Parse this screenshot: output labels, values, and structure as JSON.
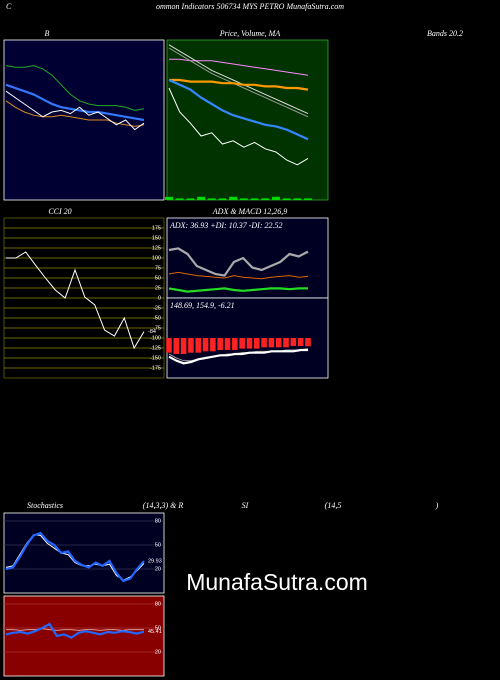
{
  "header": {
    "left": "C",
    "title": "ommon  Indicators 506734  MYS PETRO MunafaSutra.com"
  },
  "watermark": "MunafaSutra.com",
  "chart_data": [
    {
      "type": "line",
      "title": "B",
      "title_end": "Bands 20.2",
      "background": "#000033",
      "border": "#ffffff",
      "ylim": [
        0,
        100
      ],
      "series": [
        {
          "color": "#22aa22",
          "values": [
            84,
            83,
            83,
            84,
            82,
            78,
            72,
            66,
            62,
            60,
            59,
            59,
            59,
            58,
            56,
            57
          ]
        },
        {
          "color": "#3377ff",
          "thick": true,
          "values": [
            72,
            70,
            68,
            66,
            63,
            60,
            58,
            57,
            56,
            55,
            55,
            54,
            53,
            52,
            51,
            50
          ]
        },
        {
          "color": "#dd8822",
          "values": [
            62,
            58,
            55,
            53,
            52,
            52,
            53,
            52,
            51,
            50,
            50,
            50,
            48,
            47,
            46,
            47
          ]
        },
        {
          "color": "#ffffff",
          "values": [
            68,
            64,
            60,
            56,
            52,
            55,
            56,
            54,
            58,
            53,
            55,
            51,
            47,
            50,
            44,
            48
          ]
        }
      ]
    },
    {
      "type": "line",
      "title": "Price,  Volume,  MA",
      "background": "#003300",
      "border": "#33aa33",
      "ylim": [
        0,
        100
      ],
      "series": [
        {
          "color": "#ff88ff",
          "values": [
            88,
            88,
            87,
            87,
            87,
            86,
            85,
            84,
            83,
            82,
            81,
            80,
            79,
            78
          ]
        },
        {
          "color": "#dddddd",
          "values": [
            97,
            93,
            89,
            85,
            81,
            78,
            75,
            72,
            69,
            66,
            63,
            60,
            57,
            54
          ]
        },
        {
          "color": "#999999",
          "values": [
            95,
            91,
            87,
            83,
            79,
            76,
            73,
            70,
            67,
            64,
            61,
            58,
            55,
            52
          ]
        },
        {
          "color": "#ff9900",
          "thick": true,
          "values": [
            75,
            75,
            74,
            74,
            74,
            73,
            73,
            72,
            72,
            71,
            71,
            70,
            70,
            69
          ]
        },
        {
          "color": "#3388ff",
          "thick": true,
          "values": [
            75,
            72,
            69,
            64,
            60,
            56,
            53,
            51,
            49,
            47,
            46,
            44,
            41,
            38
          ]
        },
        {
          "color": "#ffffff",
          "values": [
            70,
            55,
            48,
            40,
            42,
            35,
            37,
            33,
            36,
            32,
            30,
            25,
            22,
            26
          ]
        },
        {
          "kind": "bar",
          "color": "#00dd00",
          "values": [
            2,
            1,
            1,
            2,
            1,
            1,
            2,
            1,
            1,
            1,
            2,
            1,
            1,
            1
          ]
        }
      ]
    },
    {
      "type": "line",
      "title": "CCI 20",
      "background": "#000000",
      "border": "#666600",
      "grid_color": "#8a8a00",
      "ylim": [
        -200,
        200
      ],
      "yticks": [
        175,
        150,
        125,
        100,
        75,
        50,
        25,
        0,
        -25,
        -50,
        -75,
        -100,
        -125,
        -150,
        -175
      ],
      "end_label": true,
      "series": [
        {
          "color": "#ffffff",
          "values": [
            100,
            100,
            115,
            82,
            50,
            20,
            0,
            70,
            2,
            -17,
            -80,
            -95,
            -50,
            -125,
            -84
          ]
        }
      ]
    },
    {
      "type": "line",
      "title": "ADX  & MACD 12,26,9",
      "text": "ADX: 36.93  +DI: 10.37 -DI: 22.52",
      "background": "#000022",
      "border": "#ffffff",
      "ylim": [
        0,
        100
      ],
      "series": [
        {
          "color": "#aaaaaa",
          "thick": true,
          "values": [
            60,
            62,
            55,
            40,
            35,
            30,
            28,
            45,
            50,
            38,
            35,
            40,
            45,
            55,
            52,
            58
          ]
        },
        {
          "color": "#dd6600",
          "values": [
            30,
            32,
            30,
            28,
            27,
            26,
            25,
            28,
            26,
            25,
            24,
            26,
            27,
            28,
            26,
            27
          ]
        },
        {
          "color": "#22dd22",
          "thick": true,
          "values": [
            12,
            10,
            8,
            9,
            10,
            11,
            12,
            10,
            9,
            10,
            11,
            12,
            12,
            11,
            12,
            12
          ]
        }
      ]
    },
    {
      "type": "line",
      "text": "148.69,  154.9,  -6.21",
      "background": "#000022",
      "border": "#ffffff",
      "ylim": [
        -30,
        30
      ],
      "series": [
        {
          "kind": "bar",
          "color": "#ff2222",
          "values": [
            -11,
            -12,
            -12,
            -11,
            -11,
            -10,
            -10,
            -9,
            -9,
            -9,
            -8,
            -8,
            -8,
            -7,
            -7,
            -7,
            -7,
            -6,
            -6,
            -6.21
          ]
        },
        {
          "color": "#999999",
          "values": [
            -12,
            -15,
            -17,
            -17,
            -16,
            -15,
            -14,
            -13,
            -12,
            -12,
            -11,
            -11,
            -10,
            -10,
            -10,
            -10,
            -9,
            -9,
            -9,
            -8
          ]
        },
        {
          "color": "#ffffff",
          "thick": true,
          "values": [
            -14,
            -17,
            -19,
            -18,
            -16,
            -15,
            -14,
            -13,
            -13,
            -12,
            -12,
            -11,
            -11,
            -11,
            -10,
            -10,
            -10,
            -10,
            -9,
            -9
          ]
        }
      ]
    },
    {
      "type": "line",
      "title": "Stochastics",
      "title_parts": [
        "(14,3,3) & R",
        "SI",
        "(14,5",
        ")"
      ],
      "background": "#000022",
      "border": "#ffffff",
      "grid_color": "#333355",
      "ylim": [
        -10,
        90
      ],
      "yticks": [
        80,
        50,
        20
      ],
      "end_label": true,
      "series": [
        {
          "color": "#ffffff",
          "values": [
            22,
            24,
            38,
            52,
            63,
            62,
            52,
            46,
            40,
            38,
            28,
            24,
            24,
            26,
            24,
            26,
            12,
            6,
            10,
            18,
            27
          ]
        },
        {
          "color": "#2266ff",
          "thick": true,
          "values": [
            20,
            22,
            35,
            50,
            62,
            65,
            55,
            50,
            40,
            42,
            30,
            25,
            22,
            28,
            24,
            30,
            15,
            5,
            8,
            20,
            29.93
          ]
        }
      ]
    },
    {
      "type": "line",
      "background": "#880000",
      "border": "#ffffff",
      "grid_color": "#aa3333",
      "ylim": [
        -10,
        90
      ],
      "yticks": [
        80,
        50,
        20
      ],
      "end_label": true,
      "series": [
        {
          "color": "#dd9999",
          "values": [
            48,
            48,
            47,
            48,
            48,
            49,
            48,
            47,
            48,
            48,
            47,
            48,
            48,
            47,
            48,
            48,
            47,
            48,
            48,
            48
          ]
        },
        {
          "color": "#2266ff",
          "thick": true,
          "values": [
            42,
            44,
            45,
            43,
            46,
            50,
            55,
            40,
            42,
            38,
            44,
            46,
            44,
            42,
            45,
            44,
            46,
            45,
            43,
            45.41
          ]
        }
      ]
    }
  ]
}
